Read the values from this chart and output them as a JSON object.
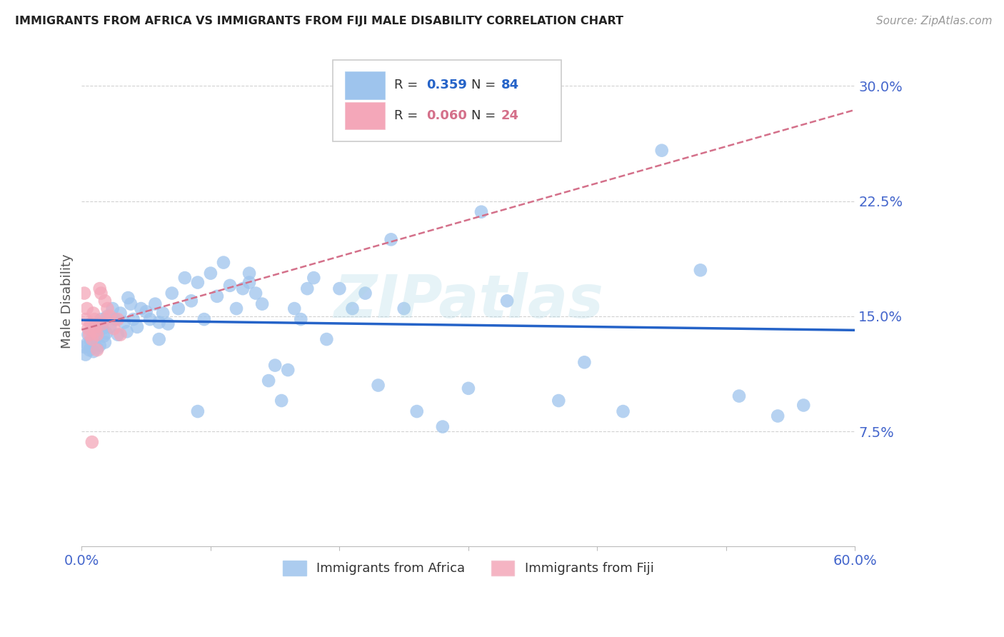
{
  "title": "IMMIGRANTS FROM AFRICA VS IMMIGRANTS FROM FIJI MALE DISABILITY CORRELATION CHART",
  "source": "Source: ZipAtlas.com",
  "ylabel": "Male Disability",
  "xlim": [
    0.0,
    0.6
  ],
  "ylim": [
    0.0,
    0.32
  ],
  "ytick_vals": [
    0.075,
    0.15,
    0.225,
    0.3
  ],
  "ytick_labels": [
    "7.5%",
    "15.0%",
    "22.5%",
    "30.0%"
  ],
  "africa_R": 0.359,
  "africa_N": 84,
  "fiji_R": 0.06,
  "fiji_N": 24,
  "africa_color": "#9ec4ed",
  "fiji_color": "#f4a7b9",
  "trendline_africa_color": "#2563c8",
  "trendline_fiji_color": "#d4708a",
  "background_color": "#ffffff",
  "grid_color": "#cccccc",
  "axis_label_color": "#4466cc",
  "title_color": "#222222",
  "watermark": "ZIPatlas",
  "africa_x": [
    0.002,
    0.003,
    0.004,
    0.005,
    0.006,
    0.007,
    0.008,
    0.009,
    0.01,
    0.011,
    0.012,
    0.013,
    0.014,
    0.015,
    0.016,
    0.017,
    0.018,
    0.019,
    0.02,
    0.022,
    0.024,
    0.026,
    0.028,
    0.03,
    0.033,
    0.036,
    0.038,
    0.04,
    0.043,
    0.046,
    0.05,
    0.053,
    0.057,
    0.06,
    0.063,
    0.067,
    0.07,
    0.075,
    0.08,
    0.085,
    0.09,
    0.095,
    0.1,
    0.105,
    0.11,
    0.115,
    0.12,
    0.125,
    0.13,
    0.135,
    0.14,
    0.145,
    0.15,
    0.155,
    0.16,
    0.165,
    0.17,
    0.175,
    0.18,
    0.19,
    0.2,
    0.21,
    0.22,
    0.23,
    0.24,
    0.25,
    0.26,
    0.28,
    0.3,
    0.31,
    0.33,
    0.35,
    0.37,
    0.39,
    0.42,
    0.45,
    0.48,
    0.51,
    0.54,
    0.56,
    0.035,
    0.06,
    0.09,
    0.13
  ],
  "africa_y": [
    0.13,
    0.125,
    0.132,
    0.138,
    0.128,
    0.134,
    0.141,
    0.127,
    0.143,
    0.136,
    0.129,
    0.145,
    0.131,
    0.148,
    0.142,
    0.137,
    0.133,
    0.139,
    0.15,
    0.143,
    0.155,
    0.148,
    0.138,
    0.152,
    0.146,
    0.162,
    0.158,
    0.148,
    0.143,
    0.155,
    0.153,
    0.148,
    0.158,
    0.146,
    0.152,
    0.145,
    0.165,
    0.155,
    0.175,
    0.16,
    0.172,
    0.148,
    0.178,
    0.163,
    0.185,
    0.17,
    0.155,
    0.168,
    0.172,
    0.165,
    0.158,
    0.108,
    0.118,
    0.095,
    0.115,
    0.155,
    0.148,
    0.168,
    0.175,
    0.135,
    0.168,
    0.155,
    0.165,
    0.105,
    0.2,
    0.155,
    0.088,
    0.078,
    0.103,
    0.218,
    0.16,
    0.27,
    0.095,
    0.12,
    0.088,
    0.258,
    0.18,
    0.098,
    0.085,
    0.092,
    0.14,
    0.135,
    0.088,
    0.178
  ],
  "fiji_x": [
    0.002,
    0.003,
    0.004,
    0.005,
    0.006,
    0.007,
    0.008,
    0.009,
    0.01,
    0.011,
    0.012,
    0.014,
    0.016,
    0.018,
    0.02,
    0.022,
    0.025,
    0.028,
    0.03,
    0.015,
    0.008,
    0.012,
    0.018,
    0.01
  ],
  "fiji_y": [
    0.165,
    0.148,
    0.155,
    0.142,
    0.138,
    0.145,
    0.135,
    0.152,
    0.148,
    0.143,
    0.138,
    0.168,
    0.145,
    0.148,
    0.155,
    0.15,
    0.142,
    0.148,
    0.138,
    0.165,
    0.068,
    0.128,
    0.16,
    0.14
  ]
}
